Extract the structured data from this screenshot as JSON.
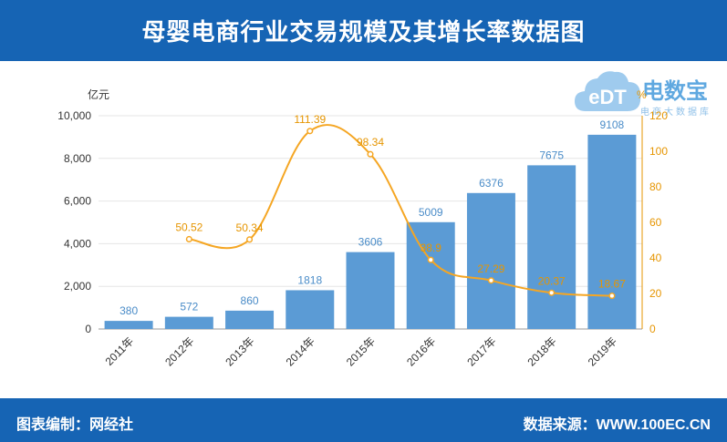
{
  "title": "母婴电商行业交易规模及其增长率数据图",
  "footer": {
    "left": "图表编制：网经社",
    "right": "数据来源：WWW.100EC.CN"
  },
  "logo": {
    "text": "电数宝",
    "sub": "电商大数据库",
    "icon": "cloud-icon",
    "icon_text": "eDT"
  },
  "colors": {
    "header": "#1664b4",
    "bar": "#5b9bd5",
    "line": "#f5a623",
    "right_axis": "#e69500"
  },
  "chart_data": {
    "type": "bar",
    "categories": [
      "2011年",
      "2012年",
      "2013年",
      "2014年",
      "2015年",
      "2016年",
      "2017年",
      "2018年",
      "2019年"
    ],
    "series": [
      {
        "type": "bar",
        "axis": "left",
        "values": [
          380,
          572,
          860,
          1818,
          3606,
          5009,
          6376,
          7675,
          9108
        ]
      },
      {
        "type": "line",
        "axis": "right",
        "values": [
          null,
          50.52,
          50.34,
          111.39,
          98.34,
          38.9,
          27.29,
          20.37,
          18.67
        ]
      }
    ],
    "y_left": {
      "label": "亿元",
      "min": 0,
      "max": 10000,
      "ticks": [
        0,
        2000,
        4000,
        6000,
        8000,
        10000
      ],
      "tick_labels": [
        "0",
        "2,000",
        "4,000",
        "6,000",
        "8,000",
        "10,000"
      ]
    },
    "y_right": {
      "label": "%",
      "min": 0,
      "max": 120,
      "ticks": [
        0,
        20,
        40,
        60,
        80,
        100,
        120
      ]
    },
    "bar_labels": [
      "380",
      "572",
      "860",
      "1818",
      "3606",
      "5009",
      "6376",
      "7675",
      "9108"
    ],
    "line_labels": [
      "",
      "50.52",
      "50.34",
      "111.39",
      "98.34",
      "38.9",
      "27.29",
      "20.37",
      "18.67"
    ],
    "grid": true,
    "legend": "none"
  }
}
